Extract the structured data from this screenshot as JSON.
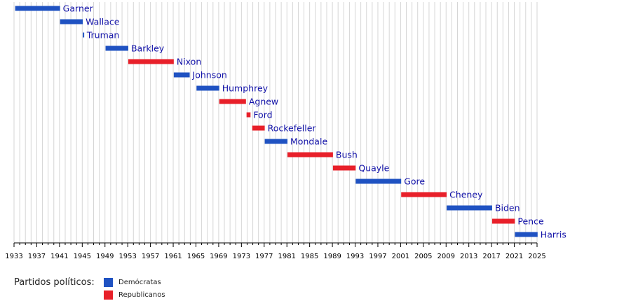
{
  "chart_data": {
    "type": "timeline",
    "x_unit": "year",
    "xlim": [
      1933,
      2025
    ],
    "x_ticks": [
      1933,
      1937,
      1941,
      1945,
      1949,
      1953,
      1957,
      1961,
      1965,
      1969,
      1973,
      1977,
      1981,
      1985,
      1989,
      1993,
      1997,
      2001,
      2005,
      2009,
      2013,
      2017,
      2021,
      2025
    ],
    "minor_grid_every": 1,
    "grid": true,
    "bars": [
      {
        "name": "Garner",
        "start": 1933.2,
        "end": 1941.1,
        "party": "dem"
      },
      {
        "name": "Wallace",
        "start": 1941.1,
        "end": 1945.1,
        "party": "dem"
      },
      {
        "name": "Truman",
        "start": 1945.1,
        "end": 1945.3,
        "party": "dem"
      },
      {
        "name": "Barkley",
        "start": 1949.1,
        "end": 1953.1,
        "party": "dem"
      },
      {
        "name": "Nixon",
        "start": 1953.1,
        "end": 1961.1,
        "party": "rep"
      },
      {
        "name": "Johnson",
        "start": 1961.1,
        "end": 1963.9,
        "party": "dem"
      },
      {
        "name": "Humphrey",
        "start": 1965.1,
        "end": 1969.1,
        "party": "dem"
      },
      {
        "name": "Agnew",
        "start": 1969.1,
        "end": 1973.8,
        "party": "rep"
      },
      {
        "name": "Ford",
        "start": 1973.9,
        "end": 1974.6,
        "party": "rep"
      },
      {
        "name": "Rockefeller",
        "start": 1974.9,
        "end": 1977.1,
        "party": "rep"
      },
      {
        "name": "Mondale",
        "start": 1977.1,
        "end": 1981.1,
        "party": "dem"
      },
      {
        "name": "Bush",
        "start": 1981.1,
        "end": 1989.1,
        "party": "rep"
      },
      {
        "name": "Quayle",
        "start": 1989.1,
        "end": 1993.1,
        "party": "rep"
      },
      {
        "name": "Gore",
        "start": 1993.1,
        "end": 2001.1,
        "party": "dem"
      },
      {
        "name": "Cheney",
        "start": 2001.1,
        "end": 2009.1,
        "party": "rep"
      },
      {
        "name": "Biden",
        "start": 2009.1,
        "end": 2017.1,
        "party": "dem"
      },
      {
        "name": "Pence",
        "start": 2017.1,
        "end": 2021.1,
        "party": "rep"
      },
      {
        "name": "Harris",
        "start": 2021.1,
        "end": 2025.1,
        "party": "dem"
      }
    ],
    "colors": {
      "dem": "#1f52c2",
      "rep": "#e8202a",
      "label": "#1212a8",
      "grid": "#d6d6d6",
      "axis": "#000000"
    }
  },
  "legend": {
    "title": "Partidos políticos:",
    "items": [
      {
        "label": "Demócratas",
        "party": "dem"
      },
      {
        "label": "Republicanos",
        "party": "rep"
      }
    ]
  }
}
